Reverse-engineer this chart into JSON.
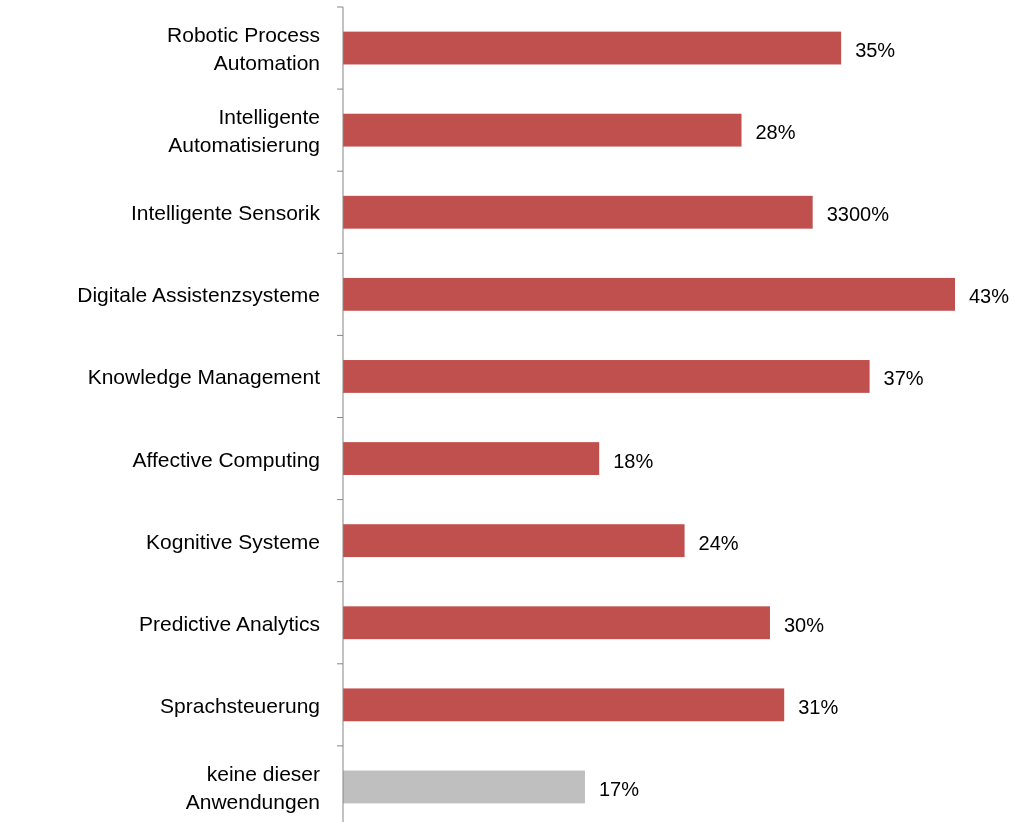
{
  "chart_data": {
    "type": "bar",
    "orientation": "horizontal",
    "categories": [
      "Robotic Process\nAutomation",
      "Intelligente\nAutomatisierung",
      "Intelligente Sensorik",
      "Digitale Assistenzsysteme",
      "Knowledge Management",
      "Affective Computing",
      "Kognitive Systeme",
      "Predictive Analytics",
      "Sprachsteuerung",
      "keine dieser\nAnwendungen"
    ],
    "values": [
      35,
      28,
      33,
      43,
      37,
      18,
      24,
      30,
      31,
      17
    ],
    "colors": [
      "#c0504d",
      "#c0504d",
      "#c0504d",
      "#c0504d",
      "#c0504d",
      "#c0504d",
      "#c0504d",
      "#c0504d",
      "#c0504d",
      "#bfbfbf"
    ],
    "value_labels": [
      "35%",
      "28%",
      "3300%",
      "43%",
      "37%",
      "18%",
      "24%",
      "30%",
      "31%",
      "17%"
    ]
  }
}
